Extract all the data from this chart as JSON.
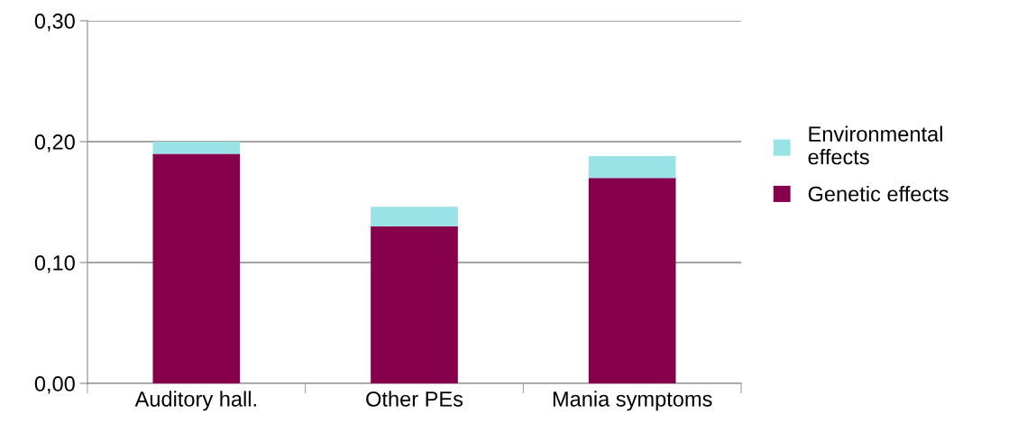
{
  "chart_data": {
    "type": "bar",
    "stacked": true,
    "categories": [
      "Auditory hall.",
      "Other PEs",
      "Mania symptoms"
    ],
    "series": [
      {
        "name": "Genetic effects",
        "color": "#87004c",
        "values": [
          0.19,
          0.13,
          0.17
        ]
      },
      {
        "name": "Environmental\neffects",
        "color": "#99e3e6",
        "values": [
          0.01,
          0.016,
          0.018
        ]
      }
    ],
    "ylim": [
      0,
      0.3
    ],
    "yticks": [
      {
        "value": 0,
        "label": "0,00"
      },
      {
        "value": 0.1,
        "label": "0,10"
      },
      {
        "value": 0.2,
        "label": "0,20"
      },
      {
        "value": 0.3,
        "label": "0,30"
      }
    ],
    "grid": "y",
    "legend": "right"
  }
}
